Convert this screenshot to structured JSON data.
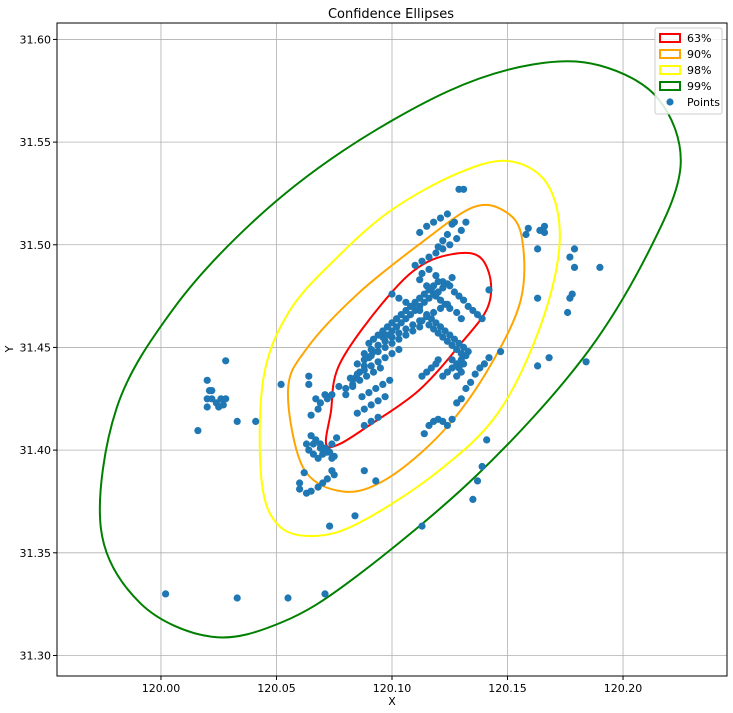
{
  "chart_data": {
    "type": "scatter",
    "title": "Confidence Ellipses",
    "xlabel": "X",
    "ylabel": "Y",
    "xlim": [
      119.955,
      120.245
    ],
    "ylim": [
      31.29,
      31.608
    ],
    "xticks": [
      120.0,
      120.05,
      120.1,
      120.15,
      120.2
    ],
    "xtick_labels": [
      "120.00",
      "120.05",
      "120.10",
      "120.15",
      "120.20"
    ],
    "yticks": [
      31.3,
      31.35,
      31.4,
      31.45,
      31.5,
      31.55,
      31.6
    ],
    "ytick_labels": [
      "31.30",
      "31.35",
      "31.40",
      "31.45",
      "31.50",
      "31.55",
      "31.60"
    ],
    "grid": true,
    "legend": {
      "placement": "top-right",
      "entries": [
        {
          "label": "63%",
          "color": "#ff0000",
          "kind": "ellipse"
        },
        {
          "label": "90%",
          "color": "#ffa500",
          "kind": "ellipse"
        },
        {
          "label": "98%",
          "color": "#ffff00",
          "kind": "ellipse"
        },
        {
          "label": "99%",
          "color": "#008000",
          "kind": "ellipse"
        },
        {
          "label": "Points",
          "color": "#1f77b4",
          "kind": "point"
        }
      ]
    },
    "ellipses": [
      {
        "label": "63%",
        "color": "#ff0000",
        "center": [
          120.1033,
          31.4495
        ],
        "poly": [
          [
            120.0735,
            31.4183
          ],
          [
            120.0715,
            31.4029
          ],
          [
            120.0772,
            31.4029
          ],
          [
            120.0894,
            31.4115
          ],
          [
            120.1115,
            31.429
          ],
          [
            120.1302,
            31.4524
          ],
          [
            120.1416,
            31.47
          ],
          [
            120.1419,
            31.4865
          ],
          [
            120.1344,
            31.4958
          ],
          [
            120.1153,
            31.4916
          ],
          [
            120.0986,
            31.4752
          ],
          [
            120.0775,
            31.4423
          ],
          [
            120.0735,
            31.4183
          ]
        ]
      },
      {
        "label": "90%",
        "color": "#ffa500",
        "center": [
          120.105,
          31.449
        ],
        "poly": [
          [
            120.055,
            31.429
          ],
          [
            120.0617,
            31.3912
          ],
          [
            120.0791,
            31.3798
          ],
          [
            120.0982,
            31.3863
          ],
          [
            120.1222,
            31.4093
          ],
          [
            120.1414,
            31.4389
          ],
          [
            120.1557,
            31.473
          ],
          [
            120.1562,
            31.5037
          ],
          [
            120.149,
            31.5162
          ],
          [
            120.1352,
            31.5183
          ],
          [
            120.1124,
            31.5007
          ],
          [
            120.0855,
            31.4764
          ],
          [
            120.0634,
            31.4499
          ],
          [
            120.055,
            31.429
          ]
        ]
      },
      {
        "label": "98%",
        "color": "#ffff00",
        "center": [
          120.105,
          31.449
        ],
        "poly": [
          [
            120.0436,
            31.3845
          ],
          [
            120.0515,
            31.3627
          ],
          [
            120.0682,
            31.3583
          ],
          [
            120.088,
            31.3659
          ],
          [
            120.1199,
            31.3896
          ],
          [
            120.1459,
            31.4181
          ],
          [
            120.1644,
            31.4609
          ],
          [
            120.1726,
            31.5014
          ],
          [
            120.1671,
            31.5298
          ],
          [
            120.15,
            31.5408
          ],
          [
            120.1275,
            31.5343
          ],
          [
            120.0994,
            31.5166
          ],
          [
            120.0764,
            31.494
          ],
          [
            120.0555,
            31.4675
          ],
          [
            120.0443,
            31.4346
          ],
          [
            120.0436,
            31.3845
          ]
        ]
      },
      {
        "label": "99%",
        "color": "#008000",
        "center": [
          120.104,
          31.449
        ],
        "poly": [
          [
            119.974,
            31.3619
          ],
          [
            119.9911,
            31.3254
          ],
          [
            120.022,
            31.3091
          ],
          [
            120.0526,
            31.3163
          ],
          [
            120.0847,
            31.3386
          ],
          [
            120.1372,
            31.3883
          ],
          [
            120.1824,
            31.4444
          ],
          [
            120.2107,
            31.4959
          ],
          [
            120.2249,
            31.5384
          ],
          [
            120.2153,
            31.571
          ],
          [
            120.19,
            31.5873
          ],
          [
            120.1609,
            31.5878
          ],
          [
            120.1245,
            31.5749
          ],
          [
            120.0785,
            31.5455
          ],
          [
            120.0396,
            31.511
          ],
          [
            120.0054,
            31.4688
          ],
          [
            119.9809,
            31.4207
          ],
          [
            119.974,
            31.3619
          ]
        ]
      }
    ],
    "points": {
      "label": "Points",
      "color": "#1f77b4",
      "x": [
        120.016,
        120.02,
        120.02,
        120.021,
        120.022,
        120.024,
        120.025,
        120.026,
        120.027,
        120.028,
        120.02,
        120.022,
        120.028,
        120.033,
        120.041,
        120.052,
        120.064,
        120.064,
        120.067,
        120.069,
        120.071,
        120.065,
        120.068,
        120.072,
        120.074,
        120.077,
        120.08,
        120.083,
        120.084,
        120.086,
        120.088,
        120.09,
        120.092,
        120.094,
        120.096,
        120.098,
        120.1,
        120.102,
        120.104,
        120.106,
        120.108,
        120.11,
        120.112,
        120.114,
        120.116,
        120.118,
        120.12,
        120.122,
        120.124,
        120.126,
        120.11,
        120.113,
        120.116,
        120.119,
        120.122,
        120.125,
        120.128,
        120.13,
        120.132,
        120.112,
        120.115,
        120.118,
        120.121,
        120.124,
        120.127,
        120.129,
        120.131,
        120.113,
        120.116,
        120.119,
        120.122,
        120.125,
        120.127,
        120.129,
        120.131,
        120.133,
        120.135,
        120.137,
        120.139,
        120.112,
        120.115,
        120.117,
        120.119,
        120.121,
        120.123,
        120.125,
        120.128,
        120.13,
        120.12,
        120.122,
        120.124,
        120.126,
        120.113,
        120.116,
        120.118,
        120.12,
        120.122,
        120.124,
        120.126,
        120.128,
        120.13,
        120.1,
        120.103,
        120.106,
        120.109,
        120.112,
        120.115,
        120.117,
        120.119,
        120.121,
        120.123,
        120.125,
        120.127,
        120.129,
        120.131,
        120.133,
        120.09,
        120.092,
        120.094,
        120.096,
        120.098,
        120.1,
        120.102,
        120.104,
        120.106,
        120.108,
        120.11,
        120.112,
        120.114,
        120.116,
        120.118,
        120.12,
        120.088,
        120.091,
        120.094,
        120.097,
        120.1,
        120.103,
        120.106,
        120.109,
        120.112,
        120.115,
        120.118,
        120.121,
        120.124,
        120.085,
        120.088,
        120.091,
        120.094,
        120.097,
        120.1,
        120.103,
        120.106,
        120.109,
        120.112,
        120.082,
        120.085,
        120.088,
        120.091,
        120.094,
        120.097,
        120.1,
        120.103,
        120.08,
        120.083,
        120.086,
        120.089,
        120.092,
        120.095,
        120.085,
        120.088,
        120.091,
        120.094,
        120.097,
        120.087,
        120.09,
        120.093,
        120.096,
        120.099,
        120.088,
        120.091,
        120.094,
        120.076,
        120.074,
        120.072,
        120.07,
        120.068,
        120.066,
        120.064,
        120.065,
        120.067,
        120.069,
        120.071,
        120.073,
        120.075,
        120.063,
        120.066,
        120.069,
        120.072,
        120.074,
        120.062,
        120.06,
        120.06,
        120.063,
        120.065,
        120.068,
        120.07,
        120.072,
        120.075,
        120.074,
        120.088,
        120.093,
        120.073,
        120.084,
        120.113,
        120.135,
        120.137,
        120.139,
        120.141,
        120.12,
        120.118,
        120.116,
        120.114,
        120.122,
        120.124,
        120.126,
        120.128,
        120.13,
        120.132,
        120.134,
        120.136,
        120.138,
        120.14,
        120.142,
        120.147,
        120.142,
        120.158,
        120.159,
        120.163,
        120.164,
        120.166,
        120.166,
        120.163,
        120.163,
        120.168,
        120.176,
        120.177,
        120.178,
        120.179,
        120.179,
        120.177,
        120.184,
        120.19,
        120.128,
        120.13,
        120.129,
        120.131,
        120.126,
        120.128,
        120.13,
        120.132,
        120.12,
        120.119,
        120.117,
        120.115,
        120.113,
        120.122,
        120.124,
        120.126,
        120.002,
        120.033,
        120.055,
        120.071
      ],
      "y": [
        31.4095,
        31.421,
        31.425,
        31.429,
        31.425,
        31.423,
        31.421,
        31.425,
        31.422,
        31.425,
        31.434,
        31.429,
        31.4435,
        31.414,
        31.414,
        31.432,
        31.436,
        31.432,
        31.425,
        31.423,
        31.427,
        31.417,
        31.42,
        31.425,
        31.427,
        31.431,
        31.427,
        31.431,
        31.435,
        31.438,
        31.441,
        31.445,
        31.448,
        31.451,
        31.455,
        31.456,
        31.458,
        31.46,
        31.462,
        31.464,
        31.466,
        31.468,
        31.47,
        31.472,
        31.474,
        31.476,
        31.477,
        31.479,
        31.481,
        31.484,
        31.49,
        31.492,
        31.494,
        31.496,
        31.498,
        31.5,
        31.503,
        31.507,
        31.511,
        31.506,
        31.509,
        31.511,
        31.513,
        31.515,
        31.511,
        31.527,
        31.527,
        31.486,
        31.488,
        31.485,
        31.482,
        31.48,
        31.477,
        31.475,
        31.473,
        31.47,
        31.468,
        31.466,
        31.464,
        31.483,
        31.48,
        31.478,
        31.475,
        31.473,
        31.471,
        31.469,
        31.467,
        31.464,
        31.499,
        31.502,
        31.505,
        31.51,
        31.463,
        31.461,
        31.459,
        31.457,
        31.455,
        31.453,
        31.451,
        31.449,
        31.447,
        31.476,
        31.474,
        31.472,
        31.47,
        31.468,
        31.466,
        31.464,
        31.462,
        31.46,
        31.458,
        31.456,
        31.454,
        31.452,
        31.45,
        31.448,
        31.452,
        31.454,
        31.456,
        31.458,
        31.46,
        31.462,
        31.464,
        31.466,
        31.468,
        31.47,
        31.472,
        31.474,
        31.476,
        31.478,
        31.48,
        31.482,
        31.447,
        31.449,
        31.451,
        31.453,
        31.455,
        31.457,
        31.459,
        31.461,
        31.463,
        31.465,
        31.467,
        31.469,
        31.471,
        31.442,
        31.444,
        31.446,
        31.448,
        31.45,
        31.452,
        31.454,
        31.456,
        31.458,
        31.46,
        31.435,
        31.437,
        31.439,
        31.441,
        31.443,
        31.445,
        31.447,
        31.449,
        31.43,
        31.432,
        31.434,
        31.436,
        31.438,
        31.44,
        31.418,
        31.42,
        31.422,
        31.424,
        31.426,
        31.426,
        31.428,
        31.43,
        31.432,
        31.434,
        31.412,
        31.414,
        31.416,
        31.406,
        31.403,
        31.4,
        31.398,
        31.396,
        31.398,
        31.4,
        31.407,
        31.405,
        31.403,
        31.401,
        31.399,
        31.397,
        31.403,
        31.403,
        31.401,
        31.399,
        31.396,
        31.389,
        31.384,
        31.381,
        31.379,
        31.38,
        31.382,
        31.384,
        31.386,
        31.388,
        31.39,
        31.39,
        31.385,
        31.363,
        31.368,
        31.363,
        31.376,
        31.385,
        31.392,
        31.405,
        31.415,
        31.414,
        31.412,
        31.408,
        31.414,
        31.412,
        31.415,
        31.423,
        31.425,
        31.43,
        31.433,
        31.437,
        31.44,
        31.442,
        31.445,
        31.448,
        31.478,
        31.505,
        31.508,
        31.498,
        31.507,
        31.509,
        31.506,
        31.474,
        31.441,
        31.445,
        31.467,
        31.474,
        31.476,
        31.498,
        31.489,
        31.494,
        31.443,
        31.489,
        31.436,
        31.438,
        31.44,
        31.442,
        31.444,
        31.442,
        31.444,
        31.446,
        31.444,
        31.442,
        31.44,
        31.438,
        31.436,
        31.436,
        31.438,
        31.44,
        31.33,
        31.328,
        31.328,
        31.33
      ]
    }
  }
}
